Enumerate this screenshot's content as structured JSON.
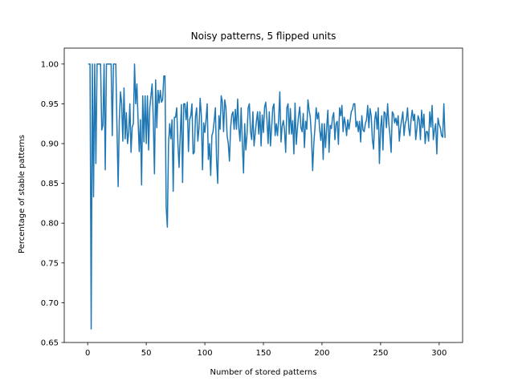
{
  "chart_data": {
    "type": "line",
    "title": "Noisy patterns, 5 flipped units",
    "xlabel": "Number of stored patterns",
    "ylabel": "Percentage of stable patterns",
    "xlim": [
      -20,
      320
    ],
    "ylim": [
      0.65,
      1.02
    ],
    "xticks": [
      0,
      50,
      100,
      150,
      200,
      250,
      300
    ],
    "yticks": [
      0.65,
      0.7,
      0.75,
      0.8,
      0.85,
      0.9,
      0.95,
      1.0
    ],
    "xtick_labels": [
      "0",
      "50",
      "100",
      "150",
      "200",
      "250",
      "300"
    ],
    "ytick_labels": [
      "0.65",
      "0.70",
      "0.75",
      "0.80",
      "0.85",
      "0.90",
      "0.95",
      "1.00"
    ],
    "grid": false,
    "series": [
      {
        "color": "#1f77b4",
        "x_start": 1,
        "x_step": 1,
        "y": [
          1.0,
          1.0,
          0.667,
          1.0,
          0.833,
          1.0,
          0.875,
          1.0,
          1.0,
          1.0,
          1.0,
          0.917,
          0.923,
          1.0,
          0.867,
          1.0,
          1.0,
          1.0,
          1.0,
          1.0,
          0.91,
          1.0,
          1.0,
          1.0,
          0.92,
          0.846,
          0.93,
          0.965,
          0.95,
          0.903,
          0.97,
          0.906,
          0.939,
          0.9,
          0.914,
          0.95,
          0.889,
          0.921,
          0.925,
          1.0,
          0.95,
          0.975,
          0.93,
          0.89,
          0.93,
          0.848,
          0.96,
          0.902,
          0.96,
          0.9,
          0.96,
          0.892,
          0.945,
          0.96,
          0.975,
          0.93,
          0.862,
          0.98,
          0.92,
          0.967,
          0.951,
          0.967,
          0.952,
          0.955,
          0.985,
          0.985,
          0.82,
          0.795,
          0.9,
          0.925,
          0.906,
          0.93,
          0.84,
          0.933,
          0.933,
          0.945,
          0.9,
          0.87,
          0.91,
          0.949,
          0.851,
          0.95,
          0.95,
          0.93,
          0.952,
          0.89,
          0.93,
          0.935,
          0.95,
          0.887,
          0.889,
          0.934,
          0.945,
          0.903,
          0.919,
          0.957,
          0.935,
          0.867,
          0.926,
          0.914,
          0.93,
          0.95,
          0.88,
          0.9,
          0.86,
          0.91,
          0.915,
          0.929,
          0.945,
          0.88,
          0.85,
          0.935,
          0.918,
          0.96,
          0.952,
          0.915,
          0.955,
          0.945,
          0.91,
          0.9,
          0.878,
          0.92,
          0.936,
          0.94,
          0.918,
          0.943,
          0.918,
          0.956,
          0.92,
          0.903,
          0.945,
          0.9,
          0.863,
          0.925,
          0.892,
          0.912,
          0.945,
          0.95,
          0.915,
          0.905,
          0.94,
          0.897,
          0.913,
          0.928,
          0.94,
          0.912,
          0.94,
          0.897,
          0.936,
          0.914,
          0.946,
          0.952,
          0.93,
          0.9,
          0.94,
          0.897,
          0.92,
          0.945,
          0.95,
          0.91,
          0.925,
          0.91,
          0.93,
          0.965,
          0.902,
          0.922,
          0.929,
          0.917,
          0.889,
          0.945,
          0.95,
          0.912,
          0.944,
          0.912,
          0.929,
          0.887,
          0.951,
          0.899,
          0.919,
          0.935,
          0.946,
          0.92,
          0.915,
          0.938,
          0.895,
          0.928,
          0.918,
          0.955,
          0.942,
          0.933,
          0.909,
          0.866,
          0.9,
          0.92,
          0.945,
          0.931,
          0.939,
          0.918,
          0.904,
          0.925,
          0.88,
          0.925,
          0.895,
          0.92,
          0.942,
          0.889,
          0.923,
          0.919,
          0.933,
          0.939,
          0.905,
          0.925,
          0.928,
          0.899,
          0.945,
          0.935,
          0.948,
          0.915,
          0.933,
          0.925,
          0.91,
          0.93,
          0.918,
          0.929,
          0.94,
          0.943,
          0.95,
          0.95,
          0.921,
          0.928,
          0.915,
          0.928,
          0.902,
          0.935,
          0.917,
          0.915,
          0.925,
          0.93,
          0.948,
          0.92,
          0.944,
          0.935,
          0.905,
          0.893,
          0.93,
          0.94,
          0.918,
          0.945,
          0.875,
          0.92,
          0.935,
          0.892,
          0.94,
          0.938,
          0.92,
          0.95,
          0.926,
          0.911,
          0.889,
          0.94,
          0.937,
          0.926,
          0.932,
          0.923,
          0.935,
          0.903,
          0.92,
          0.93,
          0.94,
          0.91,
          0.925,
          0.93,
          0.945,
          0.92,
          0.91,
          0.93,
          0.942,
          0.929,
          0.937,
          0.905,
          0.919,
          0.935,
          0.93,
          0.905,
          0.942,
          0.92,
          0.937,
          0.9,
          0.915,
          0.915,
          0.903,
          0.94,
          0.921,
          0.948,
          0.905,
          0.917,
          0.925,
          0.887,
          0.932,
          0.924,
          0.92,
          0.91,
          0.908,
          0.95,
          0.908
        ]
      }
    ]
  }
}
